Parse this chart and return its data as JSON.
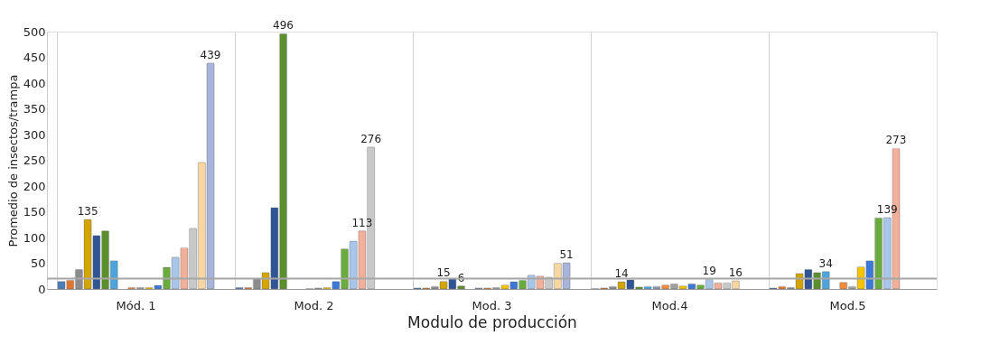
{
  "chart_data": {
    "type": "bar",
    "xlabel": "Modulo de producción",
    "ylabel": "Promedio de insectos/trampa",
    "categories": [
      "Mód. 1",
      "Mod. 2",
      "Mod. 3",
      "Mod.4",
      "Mod.5"
    ],
    "ylim": [
      0,
      500
    ],
    "yticks": [
      0,
      50,
      100,
      150,
      200,
      250,
      300,
      350,
      400,
      450,
      500
    ],
    "grid": "x",
    "ref_lines": [
      {
        "axis": "y",
        "value": 20,
        "color": "#a6a6a6"
      }
    ],
    "series": [
      {
        "color": "#4a7ebb",
        "values": [
          15,
          3,
          2,
          1,
          2
        ]
      },
      {
        "color": "#e3762f",
        "values": [
          17,
          3,
          2,
          2,
          5
        ]
      },
      {
        "color": "#8c8c8c",
        "values": [
          38,
          20,
          5,
          5,
          3
        ]
      },
      {
        "color": "#d4a500",
        "values": [
          135,
          32,
          15,
          14,
          30
        ],
        "value_labels": [
          "135",
          null,
          "15",
          "14",
          null
        ]
      },
      {
        "color": "#2f5597",
        "values": [
          104,
          158,
          20,
          18,
          38
        ]
      },
      {
        "color": "#5b8f2e",
        "values": [
          113,
          496,
          6,
          4,
          32
        ],
        "value_labels": [
          null,
          "496",
          "6",
          null,
          null
        ]
      },
      {
        "color": "#4da3dc",
        "values": [
          55,
          null,
          null,
          5,
          34
        ],
        "value_labels": [
          null,
          null,
          null,
          null,
          "34"
        ]
      },
      {
        "color": "#8a9bb0",
        "values": [
          null,
          null,
          2,
          5,
          null
        ]
      },
      {
        "color": "#f08a3c",
        "values": [
          3,
          1,
          2,
          8,
          13
        ]
      },
      {
        "color": "#a0a0a0",
        "values": [
          3,
          2,
          3,
          10,
          5
        ]
      },
      {
        "color": "#f5c400",
        "values": [
          3,
          3,
          8,
          6,
          43
        ]
      },
      {
        "color": "#3c78d8",
        "values": [
          7,
          15,
          14,
          10,
          55
        ]
      },
      {
        "color": "#6aab3f",
        "values": [
          42,
          78,
          17,
          8,
          138
        ]
      },
      {
        "color": "#a8c6ea",
        "values": [
          62,
          93,
          27,
          19,
          139
        ],
        "value_labels": [
          null,
          null,
          null,
          "19",
          "139"
        ]
      },
      {
        "color": "#f2b09a",
        "values": [
          80,
          113,
          25,
          12,
          273
        ],
        "value_labels": [
          null,
          "113",
          null,
          null,
          "273"
        ]
      },
      {
        "color": "#c8c8c8",
        "values": [
          118,
          276,
          23,
          12,
          null
        ],
        "value_labels": [
          null,
          "276",
          null,
          null,
          null
        ]
      },
      {
        "color": "#f8d6a0",
        "values": [
          246,
          null,
          50,
          16,
          null
        ],
        "value_labels": [
          null,
          null,
          null,
          "16",
          null
        ]
      },
      {
        "color": "#a8b4dc",
        "values": [
          439,
          null,
          51,
          null,
          null
        ],
        "value_labels": [
          "439",
          null,
          "51",
          null,
          null
        ]
      }
    ]
  }
}
